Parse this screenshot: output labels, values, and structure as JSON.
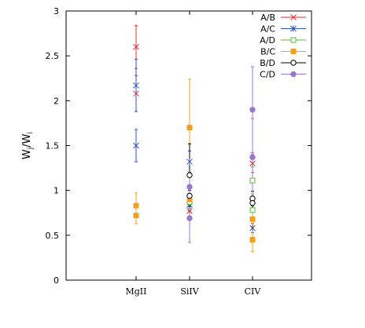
{
  "chart_data": {
    "type": "scatter",
    "title": "",
    "xlabel": "",
    "ylabel": "W_j/W_i",
    "ylabel_parts": {
      "main": "W",
      "sub_j": "j",
      "slash": "/",
      "main2": "W",
      "sub_i": "i"
    },
    "categories": [
      "MgII",
      "SiIV",
      "CIV"
    ],
    "ylim": [
      0,
      3
    ],
    "yticks": [
      "0",
      "0.5",
      "1",
      "1.5",
      "2",
      "2.5",
      "3"
    ],
    "ytick_values": [
      0,
      0.5,
      1,
      1.5,
      2,
      2.5,
      3
    ],
    "grid": false,
    "legend_position": "top-right",
    "series": [
      {
        "name": "A/B",
        "color": "#e03030",
        "marker": "x",
        "points": [
          {
            "category": "MgII",
            "y": 2.6,
            "err_low": 2.36,
            "err_high": 2.84
          },
          {
            "category": "MgII",
            "y": 2.08,
            "err_low": 1.88,
            "err_high": 2.28
          },
          {
            "category": "SiIV",
            "y": 0.77,
            "err_low": 0.7,
            "err_high": 0.84
          },
          {
            "category": "CIV",
            "y": 1.3,
            "err_low": 1.2,
            "err_high": 1.4
          }
        ]
      },
      {
        "name": "A/C",
        "color": "#3355bb",
        "marker": "asterisk",
        "points": [
          {
            "category": "MgII",
            "y": 2.17,
            "err_low": 1.88,
            "err_high": 2.46
          },
          {
            "category": "MgII",
            "y": 1.5,
            "err_low": 1.32,
            "err_high": 1.68
          },
          {
            "category": "SiIV",
            "y": 1.32,
            "err_low": 1.2,
            "err_high": 1.44
          },
          {
            "category": "SiIV",
            "y": 0.84,
            "err_low": 0.77,
            "err_high": 0.91
          },
          {
            "category": "CIV",
            "y": 0.58,
            "err_low": 0.53,
            "err_high": 0.63
          }
        ]
      },
      {
        "name": "A/D",
        "color": "#55bb33",
        "marker": "square-open",
        "points": [
          {
            "category": "SiIV",
            "y": 0.87,
            "err_low": 0.8,
            "err_high": 0.94
          },
          {
            "category": "CIV",
            "y": 1.11,
            "err_low": 0.96,
            "err_high": 1.26
          },
          {
            "category": "CIV",
            "y": 0.78,
            "err_low": 0.7,
            "err_high": 0.86
          }
        ]
      },
      {
        "name": "B/C",
        "color": "#f0a020",
        "marker": "square-filled",
        "points": [
          {
            "category": "MgII",
            "y": 0.83,
            "err_low": 0.7,
            "err_high": 0.97
          },
          {
            "category": "MgII",
            "y": 0.72,
            "err_low": 0.63,
            "err_high": 0.81
          },
          {
            "category": "SiIV",
            "y": 1.7,
            "err_low": 1.16,
            "err_high": 2.24
          },
          {
            "category": "SiIV",
            "y": 0.9,
            "err_low": 0.83,
            "err_high": 0.97
          },
          {
            "category": "CIV",
            "y": 0.45,
            "err_low": 0.32,
            "err_high": 0.58
          },
          {
            "category": "CIV",
            "y": 0.68,
            "err_low": 0.6,
            "err_high": 0.76
          }
        ]
      },
      {
        "name": "B/D",
        "color": "#000000",
        "marker": "circle-open",
        "points": [
          {
            "category": "SiIV",
            "y": 1.17,
            "err_low": 0.82,
            "err_high": 1.52
          },
          {
            "category": "SiIV",
            "y": 0.94,
            "err_low": 0.88,
            "err_high": 1.0
          },
          {
            "category": "CIV",
            "y": 0.91,
            "err_low": 0.83,
            "err_high": 0.99
          },
          {
            "category": "CIV",
            "y": 0.86,
            "err_low": 0.79,
            "err_high": 0.93
          }
        ]
      },
      {
        "name": "C/D",
        "color": "#9977cc",
        "marker": "circle-filled",
        "points": [
          {
            "category": "SiIV",
            "y": 1.04,
            "err_low": 0.89,
            "err_high": 1.19
          },
          {
            "category": "SiIV",
            "y": 0.69,
            "err_low": 0.42,
            "err_high": 0.96
          },
          {
            "category": "CIV",
            "y": 1.9,
            "err_low": 1.42,
            "err_high": 2.38
          },
          {
            "category": "CIV",
            "y": 1.37,
            "err_low": 0.94,
            "err_high": 1.8
          }
        ]
      }
    ]
  }
}
